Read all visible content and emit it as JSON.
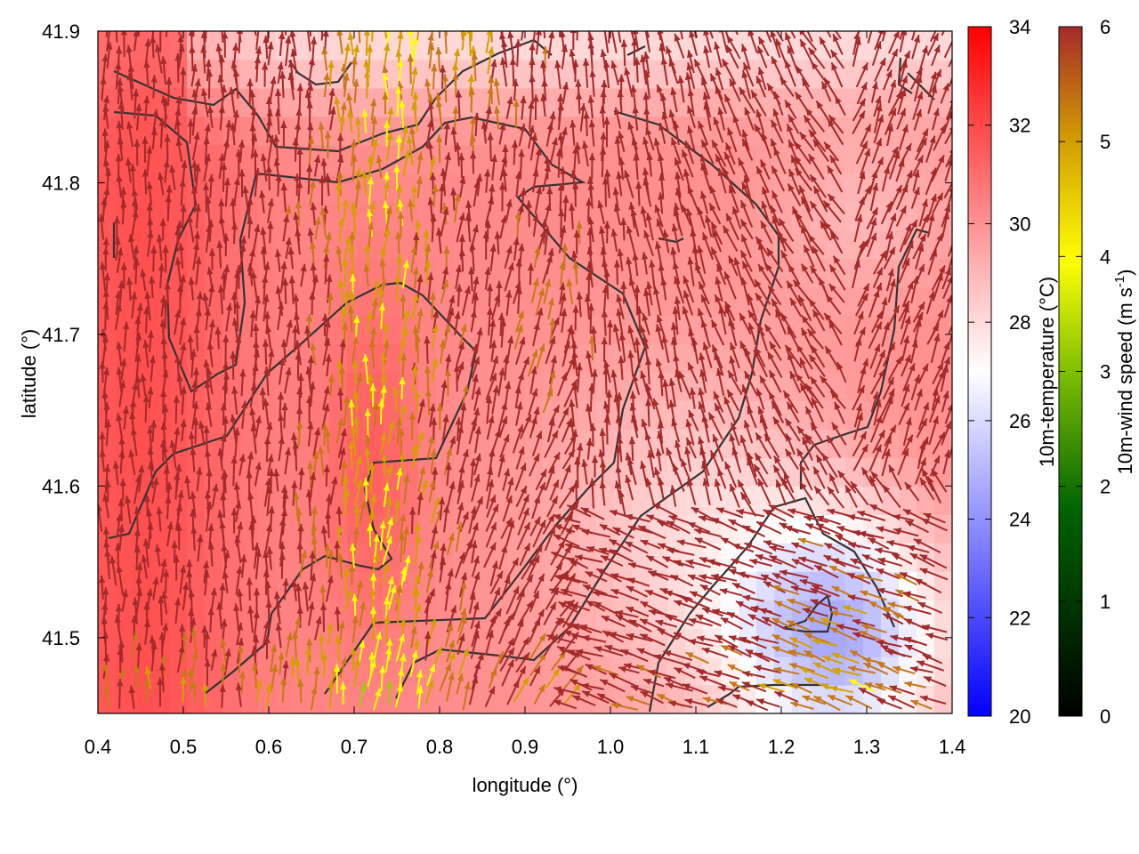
{
  "chart_data": {
    "type": "heatmap",
    "title": "",
    "xlabel": "longitude (°)",
    "ylabel": "latitude (°)",
    "xlim": [
      0.4,
      1.4
    ],
    "ylim": [
      41.45,
      41.9
    ],
    "x_ticks": [
      "0.4",
      "0.5",
      "0.6",
      "0.7",
      "0.8",
      "0.9",
      "1.0",
      "1.1",
      "1.2",
      "1.3",
      "1.4"
    ],
    "y_ticks": [
      "41.5",
      "41.6",
      "41.7",
      "41.8",
      "41.9"
    ],
    "temperature_colorbar": {
      "label": "10m-temperature (°C)",
      "range": [
        20,
        34
      ],
      "ticks": [
        "20",
        "22",
        "24",
        "26",
        "28",
        "30",
        "32",
        "34"
      ],
      "colors": {
        "low": "#0000ff",
        "mid": "#ffffff",
        "high": "#ff0000"
      }
    },
    "wind_colorbar": {
      "label": "10m-wind speed (m s",
      "label_exponent": "-1",
      "label_close": ")",
      "range": [
        0,
        6
      ],
      "ticks": [
        "0",
        "1",
        "2",
        "3",
        "4",
        "5",
        "6"
      ],
      "colors": [
        "#000000",
        "#006400",
        "#2e8b00",
        "#9acd00",
        "#ffff00",
        "#d4a000",
        "#c87818",
        "#a52a2a"
      ]
    },
    "grid": false,
    "overlays": [
      "wind-vectors",
      "contour-lines"
    ]
  }
}
